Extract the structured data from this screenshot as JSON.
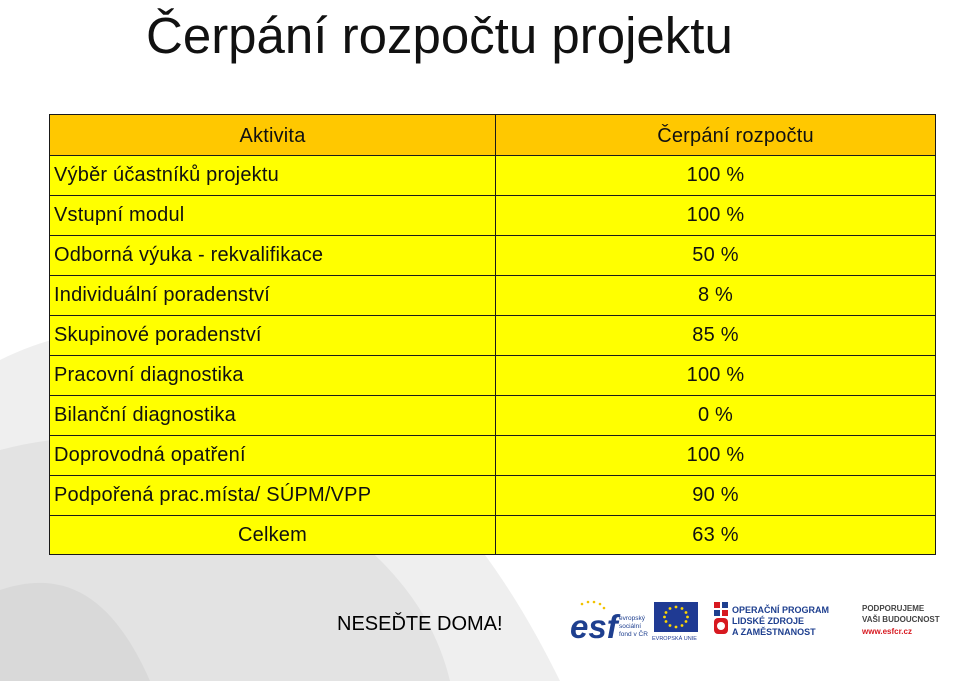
{
  "title": "Čerpání rozpočtu projektu",
  "table": {
    "header": {
      "activity": "Aktivita",
      "usage": "Čerpání rozpočtu"
    },
    "rows": [
      {
        "activity": "Výběr účastníků projektu",
        "usage": "100 %"
      },
      {
        "activity": "Vstupní modul",
        "usage": "100 %"
      },
      {
        "activity": "Odborná výuka - rekvalifikace",
        "usage": "50 %"
      },
      {
        "activity": "Individuální poradenství",
        "usage": "8 %"
      },
      {
        "activity": "Skupinové poradenství",
        "usage": "85 %"
      },
      {
        "activity": "Pracovní diagnostika",
        "usage": "100 %"
      },
      {
        "activity": "Bilanční diagnostika",
        "usage": "0 %"
      },
      {
        "activity": "Doprovodná opatření",
        "usage": "100 %"
      },
      {
        "activity": "Podpořená prac.místa/ SÚPM/VPP",
        "usage": "90 %"
      }
    ],
    "total": {
      "label": "Celkem",
      "usage": "63 %"
    }
  },
  "footer": {
    "slogan": "NESEĎTE DOMA!",
    "logos": {
      "esf_name": "esf",
      "esf_text": [
        "evropský",
        "sociální",
        "fond v ČR"
      ],
      "eu_text": "EVROPSKÁ UNIE",
      "op_text": [
        "OPERAČNÍ PROGRAM",
        "LIDSKÉ ZDROJE",
        "A ZAMĚSTNANOST"
      ],
      "support_text": [
        "PODPORUJEME",
        "VAŠI BUDOUCNOST"
      ],
      "support_url": "www.esfcr.cz"
    }
  },
  "colors": {
    "header_fill": "#ffc800",
    "row_fill": "#ffff00",
    "swoosh": "#e6e6e6",
    "esf_blue": "#1e3f8f",
    "eu_blue": "#1f3a93",
    "eu_star": "#ffd700",
    "accent_red": "#d71920"
  }
}
